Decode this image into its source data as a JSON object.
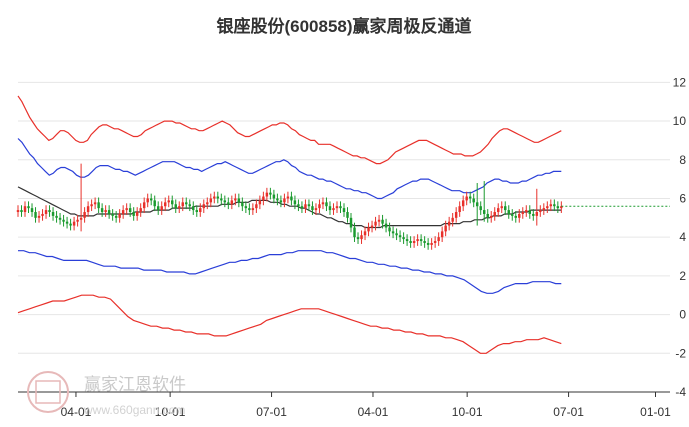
{
  "chart_data": {
    "type": "candlestick",
    "title": "银座股份(600858)赢家周极反通道",
    "y_axis": {
      "ticks": [
        12,
        10,
        8,
        6,
        4,
        2,
        0,
        -2,
        -4
      ],
      "range": [
        -4,
        13
      ]
    },
    "x_axis": {
      "labels": [
        "04-01",
        "10-01",
        "07-01",
        "04-01",
        "10-01",
        "07-01",
        "01-01"
      ],
      "label_week_index": [
        16,
        42,
        70,
        98,
        124,
        152,
        176
      ],
      "total_weeks": 180
    },
    "last_price": 5.6,
    "close_series": [
      5.4,
      5.3,
      5.6,
      5.5,
      5.3,
      5.0,
      5.1,
      5.2,
      5.4,
      5.3,
      5.1,
      5.0,
      4.9,
      4.8,
      4.7,
      4.6,
      4.8,
      4.9,
      5.0,
      5.3,
      5.6,
      5.7,
      5.8,
      5.5,
      5.3,
      5.4,
      5.2,
      5.1,
      5.0,
      5.2,
      5.4,
      5.5,
      5.3,
      5.1,
      5.3,
      5.5,
      5.8,
      6.0,
      5.9,
      5.6,
      5.4,
      5.6,
      5.8,
      5.9,
      5.7,
      5.5,
      5.6,
      5.8,
      5.7,
      5.6,
      5.4,
      5.3,
      5.5,
      5.7,
      5.8,
      6.0,
      6.1,
      6.0,
      5.9,
      5.8,
      5.7,
      5.9,
      6.0,
      5.8,
      5.6,
      5.5,
      5.4,
      5.5,
      5.7,
      5.9,
      6.1,
      6.3,
      6.2,
      6.0,
      5.9,
      5.8,
      6.0,
      6.1,
      5.9,
      5.7,
      5.6,
      5.5,
      5.7,
      5.6,
      5.4,
      5.5,
      5.7,
      5.8,
      5.6,
      5.4,
      5.5,
      5.6,
      5.5,
      5.3,
      5.0,
      4.5,
      4.0,
      3.9,
      4.1,
      4.3,
      4.5,
      4.6,
      4.8,
      4.9,
      4.7,
      4.5,
      4.3,
      4.2,
      4.1,
      4.0,
      3.9,
      3.8,
      3.7,
      3.8,
      3.9,
      3.8,
      3.7,
      3.6,
      3.7,
      3.8,
      4.0,
      4.3,
      4.6,
      4.8,
      5.0,
      5.3,
      5.6,
      5.9,
      6.1,
      6.0,
      5.8,
      5.6,
      5.4,
      5.2,
      5.0,
      5.1,
      5.3,
      5.5,
      5.6,
      5.4,
      5.2,
      5.1,
      5.0,
      5.2,
      5.3,
      5.4,
      5.2,
      5.1,
      5.3,
      5.4,
      5.5,
      5.6,
      5.7,
      5.6,
      5.5,
      5.6
    ],
    "spikes": [
      {
        "week": 18,
        "high": 7.8,
        "low": 4.3
      },
      {
        "week": 131,
        "high": 6.8,
        "low": 4.6
      },
      {
        "week": 133,
        "high": 6.9,
        "low": 4.8
      },
      {
        "week": 148,
        "high": 6.5,
        "low": 4.6
      }
    ],
    "series": [
      {
        "color": "#e8302a",
        "values": [
          11.3,
          11.0,
          10.6,
          10.2,
          9.9,
          9.6,
          9.4,
          9.2,
          9.0,
          9.1,
          9.3,
          9.5,
          9.5,
          9.4,
          9.2,
          9.0,
          8.9,
          8.9,
          9.0,
          9.3,
          9.5,
          9.7,
          9.8,
          9.8,
          9.7,
          9.6,
          9.6,
          9.5,
          9.4,
          9.3,
          9.2,
          9.2,
          9.3,
          9.5,
          9.6,
          9.7,
          9.8,
          9.9,
          10.0,
          10.0,
          10.0,
          9.9,
          9.9,
          9.8,
          9.7,
          9.6,
          9.6,
          9.5,
          9.5,
          9.6,
          9.7,
          9.8,
          9.9,
          10.0,
          9.9,
          9.8,
          9.6,
          9.4,
          9.3,
          9.2,
          9.2,
          9.3,
          9.4,
          9.5,
          9.6,
          9.7,
          9.8,
          9.8,
          9.9,
          9.9,
          9.8,
          9.6,
          9.5,
          9.3,
          9.2,
          9.1,
          9.0,
          9.0,
          8.8,
          8.8,
          8.8,
          8.8,
          8.7,
          8.6,
          8.5,
          8.4,
          8.3,
          8.2,
          8.2,
          8.1,
          8.1,
          8.0,
          7.9,
          7.8,
          7.8,
          7.9,
          8.0,
          8.2,
          8.4,
          8.5,
          8.6,
          8.7,
          8.8,
          8.9,
          9.0,
          9.0,
          9.0,
          8.9,
          8.8,
          8.7,
          8.6,
          8.5,
          8.4,
          8.3,
          8.3,
          8.3,
          8.2,
          8.2,
          8.2,
          8.3,
          8.4,
          8.6,
          8.8,
          9.1,
          9.3,
          9.5,
          9.6,
          9.6,
          9.5,
          9.4,
          9.3,
          9.2,
          9.1,
          9.0,
          8.9,
          8.9,
          9.0,
          9.1,
          9.2,
          9.3,
          9.4,
          9.5
        ]
      },
      {
        "color": "#2a3fd8",
        "values": [
          9.1,
          8.9,
          8.6,
          8.3,
          8.1,
          7.8,
          7.6,
          7.4,
          7.2,
          7.3,
          7.5,
          7.6,
          7.6,
          7.5,
          7.4,
          7.2,
          7.1,
          7.1,
          7.2,
          7.4,
          7.6,
          7.7,
          7.7,
          7.7,
          7.6,
          7.5,
          7.5,
          7.4,
          7.4,
          7.3,
          7.2,
          7.3,
          7.4,
          7.5,
          7.6,
          7.7,
          7.8,
          7.9,
          7.9,
          7.9,
          7.9,
          7.8,
          7.7,
          7.6,
          7.6,
          7.5,
          7.5,
          7.4,
          7.5,
          7.6,
          7.7,
          7.8,
          7.8,
          7.9,
          7.8,
          7.7,
          7.6,
          7.5,
          7.4,
          7.3,
          7.3,
          7.4,
          7.5,
          7.6,
          7.7,
          7.8,
          7.9,
          7.9,
          8.0,
          7.9,
          7.7,
          7.6,
          7.4,
          7.3,
          7.2,
          7.2,
          7.1,
          7.0,
          7.0,
          6.9,
          6.9,
          6.8,
          6.7,
          6.6,
          6.5,
          6.5,
          6.4,
          6.4,
          6.3,
          6.3,
          6.2,
          6.1,
          6.0,
          6.0,
          6.1,
          6.2,
          6.3,
          6.5,
          6.6,
          6.7,
          6.8,
          6.9,
          6.9,
          7.0,
          7.0,
          7.0,
          6.9,
          6.8,
          6.7,
          6.6,
          6.5,
          6.4,
          6.4,
          6.4,
          6.3,
          6.3,
          6.3,
          6.4,
          6.5,
          6.6,
          6.8,
          6.9,
          7.0,
          7.0,
          6.9,
          6.9,
          6.8,
          6.8,
          6.8,
          6.9,
          6.9,
          7.0,
          7.1,
          7.2,
          7.2,
          7.3,
          7.3,
          7.4,
          7.4,
          7.4
        ]
      },
      {
        "color": "#333333",
        "values": [
          6.6,
          6.5,
          6.4,
          6.3,
          6.2,
          6.1,
          6.0,
          5.9,
          5.8,
          5.7,
          5.6,
          5.5,
          5.4,
          5.3,
          5.2,
          5.2,
          5.1,
          5.1,
          5.1,
          5.1,
          5.1,
          5.2,
          5.2,
          5.2,
          5.2,
          5.2,
          5.2,
          5.2,
          5.2,
          5.2,
          5.2,
          5.3,
          5.3,
          5.3,
          5.3,
          5.3,
          5.4,
          5.4,
          5.4,
          5.4,
          5.4,
          5.5,
          5.5,
          5.5,
          5.5,
          5.5,
          5.5,
          5.6,
          5.6,
          5.6,
          5.6,
          5.6,
          5.6,
          5.6,
          5.7,
          5.7,
          5.7,
          5.7,
          5.8,
          5.8,
          5.8,
          5.8,
          5.9,
          5.9,
          5.9,
          5.9,
          5.9,
          5.8,
          5.8,
          5.8,
          5.7,
          5.7,
          5.6,
          5.6,
          5.6,
          5.5,
          5.5,
          5.4,
          5.3,
          5.2,
          5.2,
          5.1,
          5.0,
          5.0,
          4.9,
          4.8,
          4.8,
          4.7,
          4.7,
          4.6,
          4.6,
          4.6,
          4.5,
          4.5,
          4.5,
          4.5,
          4.5,
          4.6,
          4.6,
          4.6,
          4.6,
          4.6,
          4.6,
          4.6,
          4.6,
          4.6,
          4.6,
          4.6,
          4.6,
          4.6,
          4.6,
          4.6,
          4.6,
          4.7,
          4.7,
          4.7,
          4.7,
          4.7,
          4.8,
          4.8,
          4.8,
          4.9,
          4.9,
          4.9,
          5.0,
          5.0,
          5.1,
          5.1,
          5.1,
          5.2,
          5.2,
          5.2,
          5.3,
          5.3,
          5.3,
          5.3,
          5.4,
          5.4,
          5.4,
          5.4,
          5.4,
          5.4,
          5.4,
          5.4,
          5.4
        ]
      },
      {
        "color": "#2a3fd8",
        "values": [
          3.3,
          3.3,
          3.2,
          3.2,
          3.1,
          3.0,
          3.0,
          2.9,
          2.8,
          2.8,
          2.8,
          2.8,
          2.8,
          2.7,
          2.6,
          2.5,
          2.5,
          2.5,
          2.4,
          2.4,
          2.4,
          2.4,
          2.3,
          2.3,
          2.3,
          2.3,
          2.2,
          2.2,
          2.2,
          2.2,
          2.1,
          2.1,
          2.2,
          2.3,
          2.4,
          2.5,
          2.6,
          2.7,
          2.7,
          2.8,
          2.8,
          2.9,
          2.9,
          3.0,
          3.1,
          3.1,
          3.1,
          3.2,
          3.2,
          3.3,
          3.3,
          3.3,
          3.3,
          3.3,
          3.2,
          3.2,
          3.1,
          3.0,
          2.9,
          2.9,
          2.8,
          2.7,
          2.7,
          2.6,
          2.6,
          2.5,
          2.5,
          2.4,
          2.4,
          2.3,
          2.3,
          2.2,
          2.2,
          2.1,
          2.1,
          2.0,
          2.0,
          1.9,
          1.8,
          1.6,
          1.4,
          1.2,
          1.1,
          1.1,
          1.2,
          1.4,
          1.5,
          1.6,
          1.6,
          1.6,
          1.7,
          1.7,
          1.7,
          1.7,
          1.6,
          1.6
        ]
      },
      {
        "color": "#e8302a",
        "values": [
          0.1,
          0.2,
          0.3,
          0.4,
          0.5,
          0.6,
          0.7,
          0.7,
          0.7,
          0.8,
          0.9,
          1.0,
          1.0,
          1.0,
          0.9,
          0.9,
          0.8,
          0.5,
          0.2,
          -0.1,
          -0.3,
          -0.4,
          -0.5,
          -0.6,
          -0.6,
          -0.7,
          -0.7,
          -0.8,
          -0.8,
          -0.9,
          -0.9,
          -1.0,
          -1.0,
          -1.0,
          -1.1,
          -1.1,
          -1.1,
          -1.0,
          -0.9,
          -0.8,
          -0.7,
          -0.6,
          -0.5,
          -0.3,
          -0.2,
          -0.1,
          0.0,
          0.1,
          0.2,
          0.3,
          0.3,
          0.3,
          0.3,
          0.2,
          0.1,
          0.0,
          -0.1,
          -0.2,
          -0.3,
          -0.4,
          -0.5,
          -0.6,
          -0.6,
          -0.7,
          -0.7,
          -0.8,
          -0.8,
          -0.9,
          -0.9,
          -1.0,
          -1.0,
          -1.1,
          -1.1,
          -1.1,
          -1.2,
          -1.2,
          -1.3,
          -1.4,
          -1.6,
          -1.8,
          -2.0,
          -2.0,
          -1.8,
          -1.6,
          -1.5,
          -1.5,
          -1.4,
          -1.4,
          -1.3,
          -1.3,
          -1.3,
          -1.2,
          -1.3,
          -1.4,
          -1.5
        ]
      }
    ]
  },
  "watermark": {
    "text": "赢家江恩软件",
    "url": "www.660gann.com"
  }
}
